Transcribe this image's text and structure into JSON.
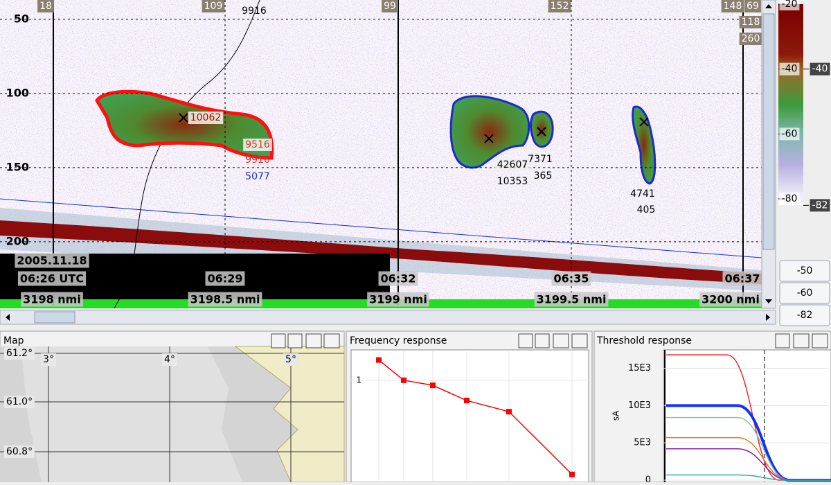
{
  "echogram": {
    "ylim": [
      37,
      242.6
    ],
    "depth_ticks": [
      50,
      100,
      150,
      200
    ],
    "top_labels": [
      "18",
      "109",
      "99",
      "152",
      "148",
      "69",
      "118",
      "260"
    ],
    "track_label": "9916",
    "school_labels": [
      "10062",
      "9516",
      "9916",
      "5077",
      "42607",
      "10353",
      "7371",
      "365",
      "4741",
      "405"
    ],
    "time_labels": [
      "2005.11.18",
      "06:26 UTC",
      "06:29",
      "06:32",
      "06:35",
      "06:37"
    ],
    "distance_labels": [
      "3198 nmi",
      "3198.5 nmi",
      "3199 nmi",
      "3199.5 nmi",
      "3200 nmi"
    ]
  },
  "color_scale": {
    "ticks": [
      -20,
      -40,
      -60,
      -80
    ],
    "right_labels": [
      -40,
      -82
    ]
  },
  "buttons": [
    -50,
    -60,
    -82
  ],
  "map": {
    "title": "Map",
    "lat_labels": [
      "61.2°",
      "61.0°",
      "60.8°"
    ],
    "lon_labels": [
      "3°",
      "4°",
      "5°"
    ]
  },
  "frequency_response": {
    "title": "Frequency response",
    "ylim": [
      0,
      1.3
    ],
    "yticks": [
      1
    ],
    "values": [
      1.2,
      1.0,
      0.95,
      0.8,
      0.69,
      0.07
    ],
    "color": "#ff0000"
  },
  "threshold_response": {
    "title": "Threshold response",
    "y_label": "sA",
    "ylim": [
      0,
      17000
    ],
    "yticks": [
      0,
      {
        "value": 5000,
        "label": "5E3"
      },
      {
        "value": 10000,
        "label": "10E3"
      },
      {
        "value": 15000,
        "label": "15E3"
      }
    ],
    "series": [
      {
        "color": "#ff2020",
        "values": [
          16800
        ]
      },
      {
        "color": "#1030ff",
        "values": [
          10000
        ]
      },
      {
        "color": "#8fc0a0",
        "values": [
          8400
        ]
      },
      {
        "color": "#e07a30",
        "values": [
          5700
        ]
      },
      {
        "color": "#9020a0",
        "values": [
          4200
        ]
      },
      {
        "color": "#20b0b0",
        "values": [
          700
        ]
      }
    ]
  }
}
